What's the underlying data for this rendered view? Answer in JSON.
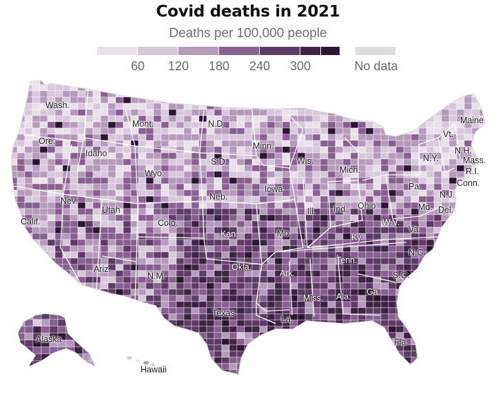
{
  "title": "Covid deaths in 2021",
  "subtitle": "Deaths per 100,000 people",
  "legend": {
    "colors": [
      "#e9e0ea",
      "#d8c8db",
      "#b59bbb",
      "#875f90",
      "#5e3b67",
      "#3d2444",
      "#2a1630"
    ],
    "ticks": [
      "60",
      "120",
      "180",
      "240",
      "300"
    ],
    "no_data_label": "No data",
    "no_data_color": "#dddddd"
  },
  "states": [
    {
      "id": "wash",
      "label": "Wash."
    },
    {
      "id": "ore",
      "label": "Ore."
    },
    {
      "id": "idaho",
      "label": "Idaho"
    },
    {
      "id": "mont",
      "label": "Mont."
    },
    {
      "id": "wyo",
      "label": "Wyo."
    },
    {
      "id": "nd",
      "label": "N.D."
    },
    {
      "id": "sd",
      "label": "S.D."
    },
    {
      "id": "minn",
      "label": "Minn."
    },
    {
      "id": "wis",
      "label": "Wis."
    },
    {
      "id": "mich",
      "label": "Mich."
    },
    {
      "id": "iowa",
      "label": "Iowa"
    },
    {
      "id": "neb",
      "label": "Neb."
    },
    {
      "id": "nev",
      "label": "Nev."
    },
    {
      "id": "utah",
      "label": "Utah"
    },
    {
      "id": "colo",
      "label": "Colo."
    },
    {
      "id": "calif",
      "label": "Calif."
    },
    {
      "id": "kan",
      "label": "Kan."
    },
    {
      "id": "mo",
      "label": "Mo."
    },
    {
      "id": "ill",
      "label": "Ill."
    },
    {
      "id": "ind",
      "label": "Ind."
    },
    {
      "id": "ohio",
      "label": "Ohio"
    },
    {
      "id": "pa",
      "label": "Pa."
    },
    {
      "id": "ny",
      "label": "N.Y."
    },
    {
      "id": "vt",
      "label": "Vt."
    },
    {
      "id": "maine",
      "label": "Maine"
    },
    {
      "id": "nh",
      "label": "N.H."
    },
    {
      "id": "mass",
      "label": "Mass."
    },
    {
      "id": "ri",
      "label": "R.I."
    },
    {
      "id": "conn",
      "label": "Conn."
    },
    {
      "id": "nj",
      "label": "N.J."
    },
    {
      "id": "md",
      "label": "Md."
    },
    {
      "id": "del",
      "label": "Del."
    },
    {
      "id": "wv",
      "label": "W.V."
    },
    {
      "id": "va",
      "label": "Va."
    },
    {
      "id": "ky",
      "label": "Ky."
    },
    {
      "id": "nc",
      "label": "N.C."
    },
    {
      "id": "tenn",
      "label": "Tenn."
    },
    {
      "id": "sc",
      "label": "S.C."
    },
    {
      "id": "ark",
      "label": "Ark."
    },
    {
      "id": "okla",
      "label": "Okla."
    },
    {
      "id": "ariz",
      "label": "Ariz."
    },
    {
      "id": "nm",
      "label": "N.M."
    },
    {
      "id": "texas",
      "label": "Texas"
    },
    {
      "id": "miss",
      "label": "Miss."
    },
    {
      "id": "ala",
      "label": "Ala."
    },
    {
      "id": "ga",
      "label": "Ga."
    },
    {
      "id": "la",
      "label": "La."
    },
    {
      "id": "fla",
      "label": "Fla."
    },
    {
      "id": "alaska",
      "label": "Alaska"
    },
    {
      "id": "hawaii",
      "label": "Hawaii"
    }
  ]
}
